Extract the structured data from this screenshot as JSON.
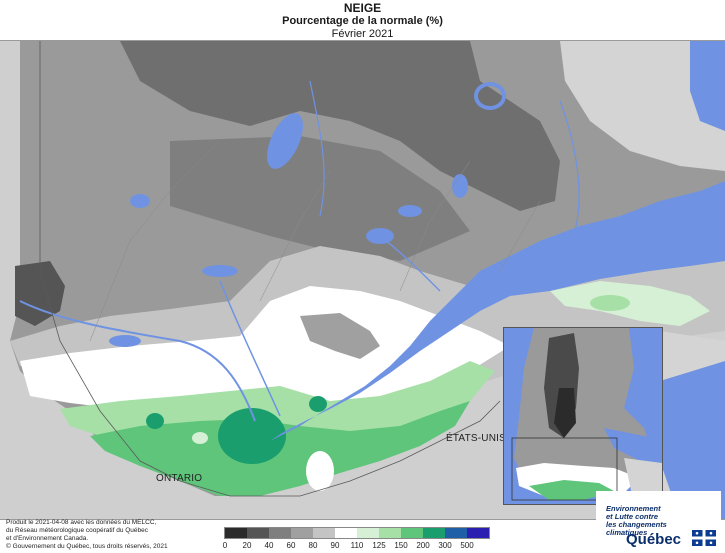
{
  "header": {
    "title": "NEIGE",
    "subtitle": "Pourcentage de la normale (%)",
    "period": "Février 2021"
  },
  "map": {
    "labels": {
      "ontario": "ONTARIO",
      "usa": "ÉTATS-UNIS"
    },
    "colors": {
      "water": "#6f93e2",
      "outside": "#cfcfcf"
    }
  },
  "legend": {
    "breaks": [
      "0",
      "20",
      "40",
      "60",
      "80",
      "90",
      "110",
      "125",
      "150",
      "200",
      "300",
      "500"
    ],
    "colors": [
      "#2b2b2b",
      "#555555",
      "#7f7f7f",
      "#a0a0a0",
      "#c4c4c4",
      "#ffffff",
      "#d6f0d6",
      "#a6e0a6",
      "#5ec57a",
      "#1a9e6e",
      "#1f5fa8",
      "#2a1fb0"
    ]
  },
  "footer": {
    "note_line1": "Produit le 2021-04-08 avec les données du MELCC,",
    "note_line2": "du Réseau météorologique coopératif du Québec",
    "note_line3": "et d'Environnement Canada.",
    "copyright": "© Gouvernement du Québec, tous droits réservés, 2021"
  },
  "brand": {
    "line1": "Environnement",
    "line2": "et Lutte contre",
    "line3": "les changements",
    "line4": "climatiques",
    "name": "Québec"
  }
}
